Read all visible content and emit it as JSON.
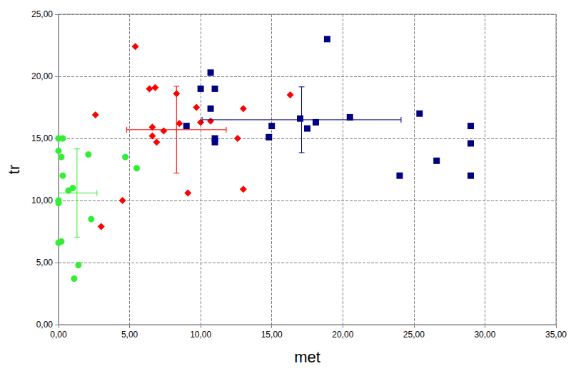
{
  "chart_data": {
    "type": "scatter",
    "x_label": "met",
    "y_label": "tr",
    "xlim": [
      0,
      35
    ],
    "ylim": [
      0,
      25
    ],
    "xticks": [
      {
        "value": 0,
        "label": "0,00"
      },
      {
        "value": 5,
        "label": "5,00"
      },
      {
        "value": 10,
        "label": "10,00"
      },
      {
        "value": 15,
        "label": "15,00"
      },
      {
        "value": 20,
        "label": "20,00"
      },
      {
        "value": 25,
        "label": "25,00"
      },
      {
        "value": 30,
        "label": "30,00"
      },
      {
        "value": 35,
        "label": "35,00"
      }
    ],
    "yticks": [
      {
        "value": 0,
        "label": "0,00"
      },
      {
        "value": 5,
        "label": "5,00"
      },
      {
        "value": 10,
        "label": "10,00"
      },
      {
        "value": 15,
        "label": "15,00"
      },
      {
        "value": 20,
        "label": "20,00"
      },
      {
        "value": 25,
        "label": "25,00"
      }
    ],
    "grid": true,
    "series": [
      {
        "color": "#33ee33",
        "marker": "circle",
        "x": [
          0.0,
          0.3,
          0.0,
          0.2,
          0.3,
          0.0,
          0.0,
          0.7,
          1.0,
          2.1,
          4.7,
          5.5,
          2.3,
          0.0,
          0.2,
          1.4,
          1.1
        ],
        "values": [
          15.0,
          15.0,
          14.0,
          13.5,
          12.0,
          10.0,
          9.8,
          10.8,
          11.0,
          13.7,
          13.5,
          12.6,
          8.5,
          6.6,
          6.7,
          4.8,
          3.7
        ],
        "error": {
          "x": 1.3,
          "y": 10.6,
          "xerr": 1.4,
          "yerr": 3.55
        }
      },
      {
        "color": "#ff0000",
        "marker": "diamond",
        "x": [
          5.4,
          6.4,
          6.8,
          8.3,
          9.7,
          2.6,
          6.6,
          6.6,
          6.9,
          7.4,
          8.5,
          10.0,
          10.7,
          13.0,
          12.6,
          16.3,
          4.5,
          9.1,
          13.0,
          3.0
        ],
        "values": [
          22.4,
          19.0,
          19.1,
          18.6,
          17.5,
          16.9,
          15.9,
          15.2,
          14.7,
          15.6,
          16.2,
          16.3,
          16.4,
          17.4,
          15.0,
          18.5,
          10.0,
          10.6,
          10.9,
          7.9
        ],
        "error": {
          "x": 8.3,
          "y": 15.7,
          "xerr": 3.5,
          "yerr": 3.5
        }
      },
      {
        "color": "#000080",
        "marker": "square",
        "x": [
          18.9,
          10.7,
          10.0,
          11.0,
          10.7,
          9.0,
          11.0,
          11.0,
          14.8,
          15.0,
          17.0,
          17.5,
          18.1,
          20.5,
          25.4,
          24.0,
          26.6,
          29.0,
          29.0,
          29.0
        ],
        "values": [
          23.0,
          20.3,
          19.0,
          19.0,
          17.4,
          16.0,
          15.0,
          14.7,
          15.1,
          16.0,
          16.6,
          15.8,
          16.3,
          16.7,
          17.0,
          12.0,
          13.2,
          16.0,
          14.6,
          12.0
        ],
        "error": {
          "x": 17.1,
          "y": 16.5,
          "xerr": 7.0,
          "yerr": 2.65
        }
      }
    ]
  }
}
